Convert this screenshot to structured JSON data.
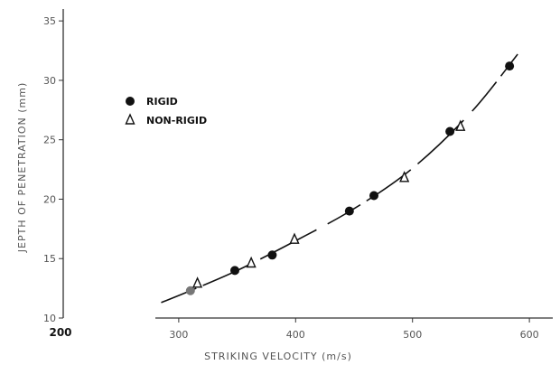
{
  "chart_data": {
    "type": "scatter",
    "title": "",
    "xlabel": "STRIKING VELOCITY (m/s)",
    "ylabel": "JEPTH OF PENETRATION (mm)",
    "xlim": [
      280,
      620
    ],
    "ylim": [
      10,
      36
    ],
    "x_ticks": [
      300,
      400,
      500,
      600
    ],
    "y_ticks": [
      10,
      15,
      20,
      25,
      30,
      35
    ],
    "extra_label": "200",
    "grid": false,
    "legend_position": "upper-left",
    "series": [
      {
        "name": "RIGID",
        "marker": "filled-circle",
        "points": [
          {
            "x": 310,
            "y": 12.3
          },
          {
            "x": 348,
            "y": 14.0
          },
          {
            "x": 380,
            "y": 15.3
          },
          {
            "x": 446,
            "y": 19.0
          },
          {
            "x": 467,
            "y": 20.3
          },
          {
            "x": 532,
            "y": 25.7
          },
          {
            "x": 583,
            "y": 31.2
          }
        ]
      },
      {
        "name": "NON-RIGID",
        "marker": "open-triangle",
        "points": [
          {
            "x": 316,
            "y": 12.9
          },
          {
            "x": 362,
            "y": 14.6
          },
          {
            "x": 399,
            "y": 16.6
          },
          {
            "x": 493,
            "y": 21.8
          },
          {
            "x": 541,
            "y": 26.1
          }
        ]
      }
    ],
    "fit_curve": {
      "style": "dashed",
      "points": [
        {
          "x": 285,
          "y": 11.3
        },
        {
          "x": 310,
          "y": 12.3
        },
        {
          "x": 350,
          "y": 14.0
        },
        {
          "x": 400,
          "y": 16.5
        },
        {
          "x": 450,
          "y": 19.2
        },
        {
          "x": 500,
          "y": 22.6
        },
        {
          "x": 550,
          "y": 27.3
        },
        {
          "x": 590,
          "y": 32.2
        }
      ]
    }
  }
}
